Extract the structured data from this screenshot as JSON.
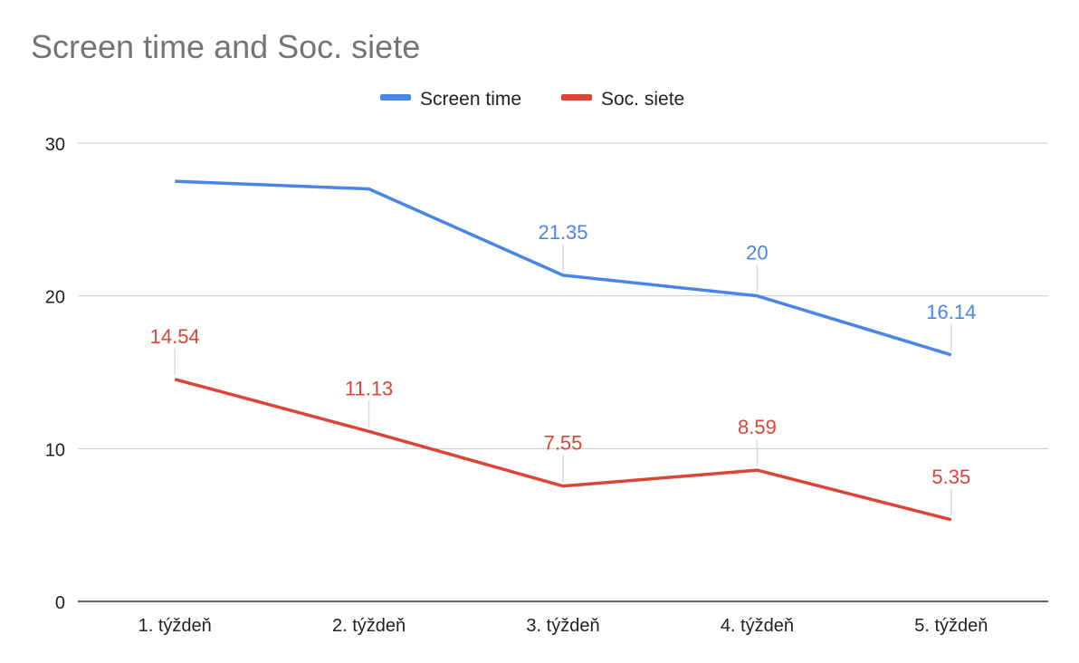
{
  "chart_data": {
    "type": "line",
    "title": "Screen time and Soc. siete",
    "xlabel": "",
    "ylabel": "",
    "categories": [
      "1. týždeň",
      "2. týždeň",
      "3. týždeň",
      "4. týždeň",
      "5. týždeň"
    ],
    "ylim": [
      0,
      30
    ],
    "yticks": [
      0,
      10,
      20,
      30
    ],
    "grid": true,
    "legend_position": "top-center",
    "series": [
      {
        "name": "Screen time",
        "color": "#4a86e8",
        "values": [
          27.5,
          27.0,
          21.35,
          20,
          16.14
        ],
        "labels": [
          null,
          null,
          "21.35",
          "20",
          "16.14"
        ]
      },
      {
        "name": "Soc. siete",
        "color": "#db4437",
        "values": [
          14.54,
          11.13,
          7.55,
          8.59,
          5.35
        ],
        "labels": [
          "14.54",
          "11.13",
          "7.55",
          "8.59",
          "5.35"
        ]
      }
    ]
  }
}
